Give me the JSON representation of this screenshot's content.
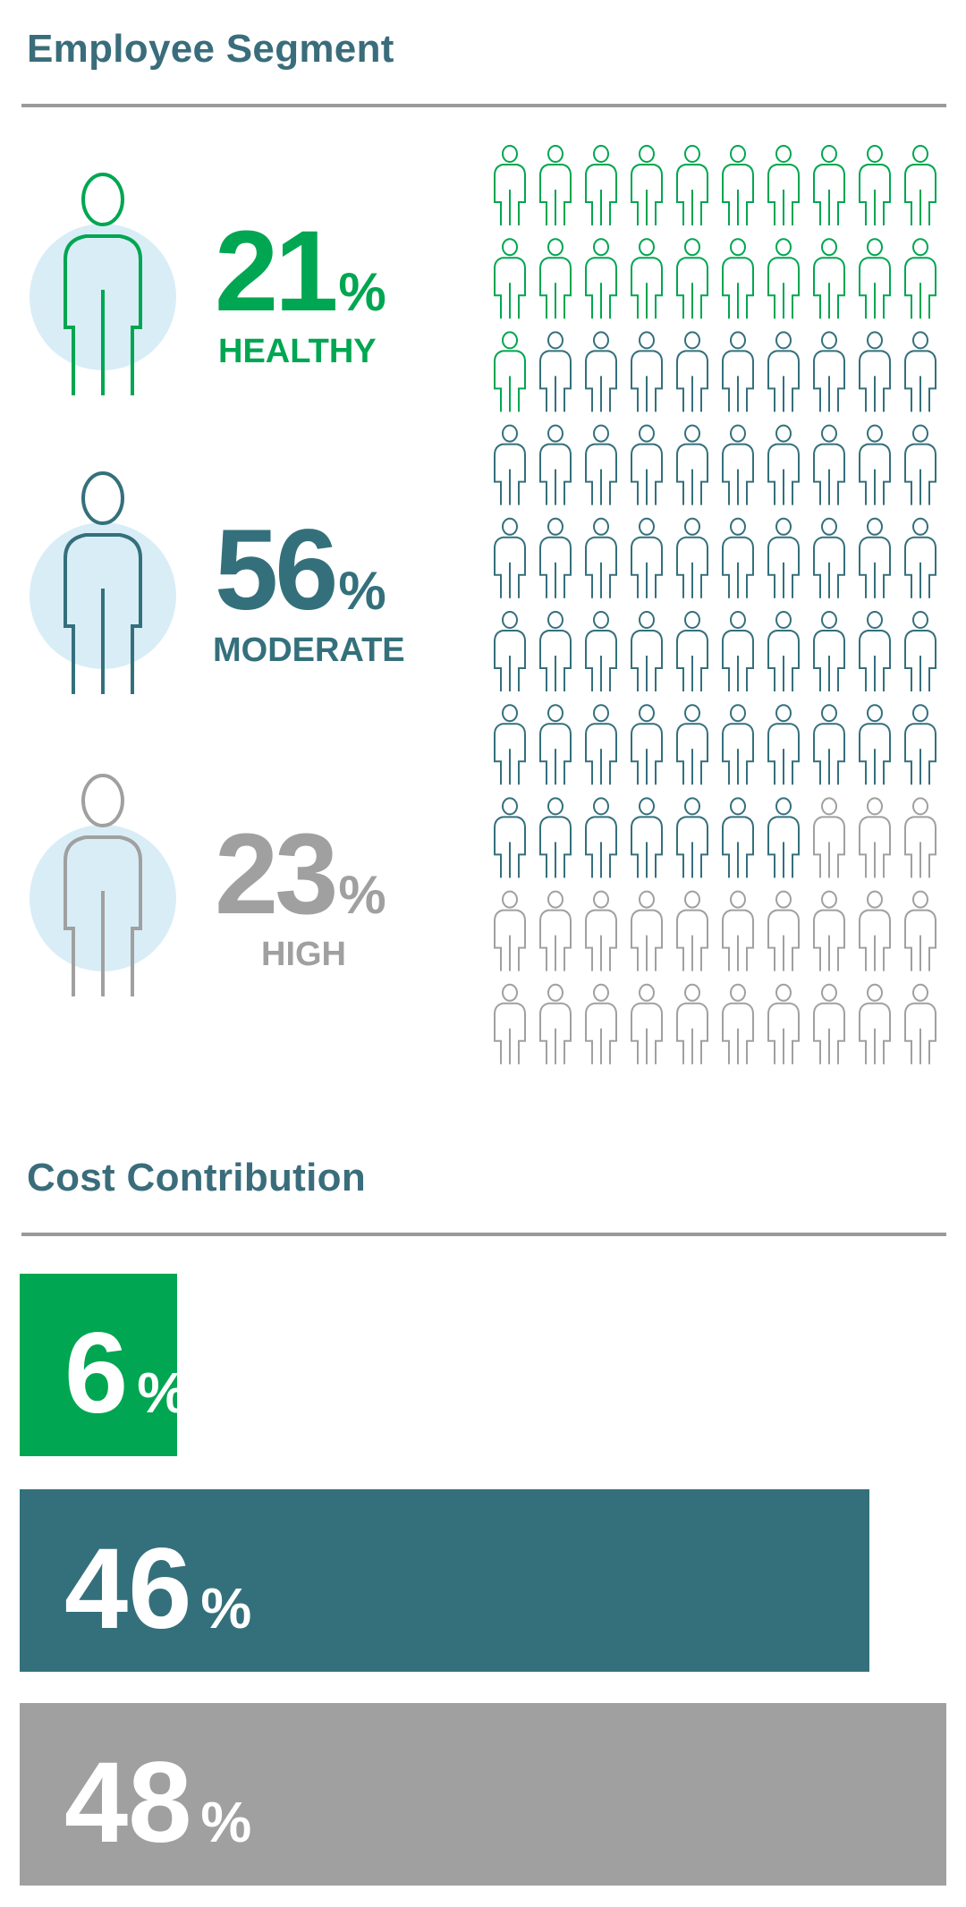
{
  "employee_segment": {
    "title": "Employee Segment",
    "segments": [
      {
        "key": "healthy",
        "value": "21",
        "suffix": "%",
        "label": "HEALTHY",
        "color": "#00a651"
      },
      {
        "key": "moderate",
        "value": "56",
        "suffix": "%",
        "label": "MODERATE",
        "color": "#34707c"
      },
      {
        "key": "high",
        "value": "23",
        "suffix": "%",
        "label": "HIGH",
        "color": "#a0a0a0"
      }
    ],
    "figure_circle_color": "#d9edf7"
  },
  "cost_contribution": {
    "title": "Cost Contribution",
    "bars": [
      {
        "key": "healthy",
        "value": "6",
        "suffix": "%",
        "color": "#00a651"
      },
      {
        "key": "moderate",
        "value": "46",
        "suffix": "%",
        "color": "#34707c"
      },
      {
        "key": "high",
        "value": "48",
        "suffix": "%",
        "color": "#a0a0a0"
      }
    ]
  },
  "chart_data": [
    {
      "type": "pictogram",
      "title": "Employee Segment",
      "icon": "person-outline-icon",
      "total_icons": 100,
      "grid": {
        "rows": 10,
        "columns": 10
      },
      "categories": [
        "HEALTHY",
        "MODERATE",
        "HIGH"
      ],
      "values": [
        21,
        56,
        23
      ],
      "colors": [
        "#00a651",
        "#34707c",
        "#a0a0a0"
      ]
    },
    {
      "type": "bar",
      "orientation": "horizontal",
      "title": "Cost Contribution",
      "categories": [
        "HEALTHY",
        "MODERATE",
        "HIGH"
      ],
      "values": [
        6,
        46,
        48
      ],
      "colors": [
        "#00a651",
        "#34707c",
        "#a0a0a0"
      ]
    }
  ]
}
